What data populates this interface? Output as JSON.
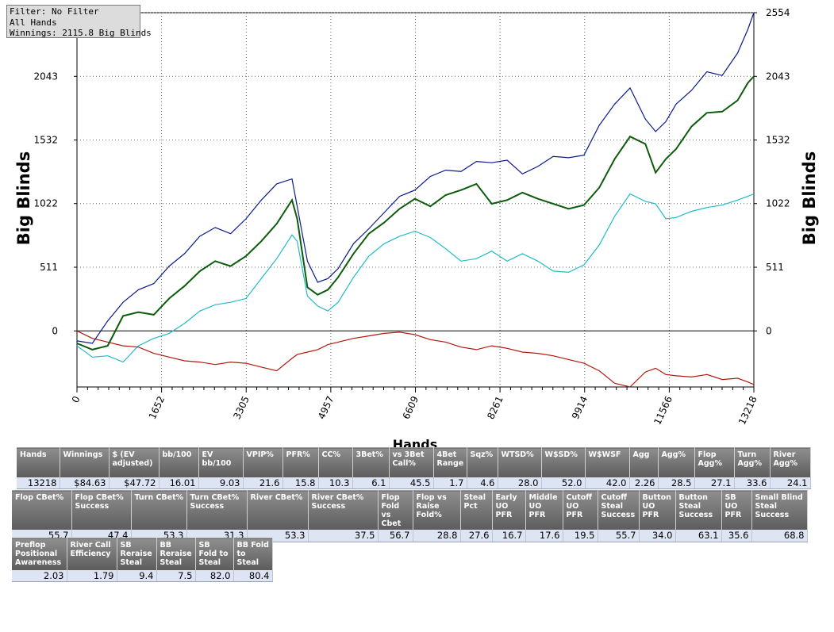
{
  "info": {
    "filter": "Filter: No Filter",
    "hands": "All Hands",
    "winnings": "Winnings: 2115.8 Big Blinds"
  },
  "chart_data": {
    "type": "line",
    "xlabel": "Hands",
    "ylabel": "Big Blinds",
    "xlim": [
      0,
      13218
    ],
    "ylim": [
      -450,
      2554
    ],
    "x_ticks": [
      0,
      1652,
      3305,
      4957,
      6609,
      8261,
      9914,
      11566,
      13218
    ],
    "y_ticks": [
      0,
      511,
      1022,
      1532,
      2043,
      2554
    ],
    "grid": true,
    "colors": {
      "blue": "#0a1a8c",
      "green": "#0c5c0c",
      "cyan": "#1fbcc8",
      "red": "#b11a0e"
    },
    "series": [
      {
        "color": "blue",
        "x": [
          0,
          300,
          600,
          900,
          1200,
          1500,
          1800,
          2100,
          2400,
          2700,
          3000,
          3300,
          3600,
          3900,
          4200,
          4300,
          4500,
          4700,
          4900,
          5100,
          5400,
          5700,
          6000,
          6300,
          6600,
          6900,
          7200,
          7500,
          7800,
          8100,
          8400,
          8700,
          9000,
          9300,
          9600,
          9900,
          10200,
          10500,
          10800,
          11100,
          11300,
          11500,
          11700,
          12000,
          12300,
          12600,
          12900,
          13100,
          13218
        ],
        "y": [
          -80,
          -100,
          80,
          230,
          330,
          380,
          520,
          620,
          760,
          830,
          780,
          900,
          1050,
          1180,
          1220,
          1000,
          560,
          390,
          420,
          500,
          700,
          820,
          950,
          1080,
          1130,
          1240,
          1290,
          1280,
          1360,
          1350,
          1370,
          1260,
          1320,
          1400,
          1390,
          1410,
          1650,
          1820,
          1950,
          1700,
          1600,
          1680,
          1820,
          1930,
          2080,
          2050,
          2230,
          2420,
          2554
        ]
      },
      {
        "color": "green",
        "x": [
          0,
          300,
          600,
          900,
          1200,
          1500,
          1800,
          2100,
          2400,
          2700,
          3000,
          3300,
          3600,
          3900,
          4200,
          4300,
          4500,
          4700,
          4900,
          5100,
          5400,
          5700,
          6000,
          6300,
          6600,
          6900,
          7200,
          7500,
          7800,
          8100,
          8400,
          8700,
          9000,
          9300,
          9600,
          9900,
          10200,
          10500,
          10800,
          11100,
          11300,
          11500,
          11700,
          12000,
          12300,
          12600,
          12900,
          13100,
          13218
        ],
        "y": [
          -100,
          -150,
          -120,
          120,
          150,
          130,
          260,
          360,
          480,
          560,
          520,
          600,
          720,
          860,
          1050,
          900,
          350,
          290,
          330,
          430,
          620,
          780,
          870,
          980,
          1060,
          1000,
          1090,
          1130,
          1180,
          1020,
          1050,
          1110,
          1060,
          1020,
          980,
          1010,
          1150,
          1380,
          1560,
          1500,
          1270,
          1380,
          1460,
          1640,
          1750,
          1760,
          1850,
          1990,
          2043
        ]
      },
      {
        "color": "cyan",
        "x": [
          0,
          300,
          600,
          900,
          1200,
          1500,
          1800,
          2100,
          2400,
          2700,
          3000,
          3300,
          3600,
          3900,
          4200,
          4300,
          4500,
          4700,
          4900,
          5100,
          5400,
          5700,
          6000,
          6300,
          6600,
          6900,
          7200,
          7500,
          7800,
          8100,
          8400,
          8700,
          9000,
          9300,
          9600,
          9900,
          10200,
          10500,
          10800,
          11100,
          11300,
          11500,
          11700,
          12000,
          12300,
          12600,
          12900,
          13100,
          13218
        ],
        "y": [
          -120,
          -210,
          -200,
          -250,
          -120,
          -60,
          -20,
          60,
          160,
          210,
          230,
          260,
          420,
          580,
          770,
          720,
          280,
          200,
          160,
          230,
          430,
          600,
          700,
          760,
          800,
          750,
          660,
          560,
          580,
          640,
          560,
          620,
          560,
          480,
          470,
          530,
          690,
          920,
          1100,
          1040,
          1020,
          900,
          910,
          960,
          990,
          1010,
          1050,
          1080,
          1100
        ]
      },
      {
        "color": "red",
        "x": [
          0,
          300,
          600,
          900,
          1200,
          1500,
          1800,
          2100,
          2400,
          2700,
          3000,
          3300,
          3600,
          3900,
          4200,
          4300,
          4500,
          4700,
          4900,
          5100,
          5400,
          5700,
          6000,
          6300,
          6600,
          6900,
          7200,
          7500,
          7800,
          8100,
          8400,
          8700,
          9000,
          9300,
          9600,
          9900,
          10200,
          10500,
          10800,
          11100,
          11300,
          11500,
          11700,
          12000,
          12300,
          12600,
          12900,
          13100,
          13218
        ],
        "y": [
          0,
          -60,
          -90,
          -120,
          -130,
          -180,
          -210,
          -240,
          -250,
          -270,
          -250,
          -260,
          -290,
          -320,
          -220,
          -190,
          -170,
          -150,
          -110,
          -90,
          -60,
          -40,
          -20,
          -10,
          -30,
          -70,
          -90,
          -130,
          -150,
          -120,
          -140,
          -170,
          -180,
          -200,
          -230,
          -260,
          -320,
          -420,
          -450,
          -330,
          -300,
          -350,
          -360,
          -370,
          -350,
          -390,
          -380,
          -410,
          -430
        ]
      }
    ]
  },
  "stats_rows": [
    {
      "headers": [
        "Hands",
        "Winnings",
        "$ (EV adjusted)",
        "bb/100",
        "EV bb/100",
        "VPIP%",
        "PFR%",
        "CC%",
        "3Bet%",
        "vs 3Bet Call%",
        "4Bet Range",
        "Sqz%",
        "WTSD%",
        "W$SD%",
        "W$WSF",
        "Agg",
        "Agg%",
        "Flop Agg%",
        "Turn Agg%",
        "River Agg%"
      ],
      "values": [
        "13218",
        "$84.63",
        "$47.72",
        "16.01",
        "9.03",
        "21.6",
        "15.8",
        "10.3",
        "6.1",
        "45.5",
        "1.7",
        "4.6",
        "28.0",
        "52.0",
        "42.0",
        "2.26",
        "28.5",
        "27.1",
        "33.6",
        "24.1"
      ]
    },
    {
      "headers": [
        "Flop CBet%",
        "Flop CBet% Success",
        "Turn CBet%",
        "Turn CBet% Success",
        "River CBet%",
        "River CBet% Success",
        "Flop Fold vs Cbet",
        "Flop vs Raise Fold%",
        "Steal Pct",
        "Early UO PFR",
        "Middle UO PFR",
        "Cutoff UO PFR",
        "Cutoff Steal Success",
        "Button UO PFR",
        "Button Steal Success",
        "SB UO PFR",
        "Small Blind Steal Success"
      ],
      "values": [
        "55.7",
        "47.4",
        "53.3",
        "31.3",
        "53.3",
        "37.5",
        "56.7",
        "28.8",
        "27.6",
        "16.7",
        "17.6",
        "19.5",
        "55.7",
        "34.0",
        "63.1",
        "35.6",
        "68.8"
      ]
    },
    {
      "headers": [
        "Preflop Positional Awareness",
        "River Call Efficiency",
        "SB Reraise Steal",
        "BB Reraise Steal",
        "SB Fold to Steal",
        "BB Fold to Steal"
      ],
      "values": [
        "2.03",
        "1.79",
        "9.4",
        "7.5",
        "82.0",
        "80.4"
      ]
    }
  ]
}
